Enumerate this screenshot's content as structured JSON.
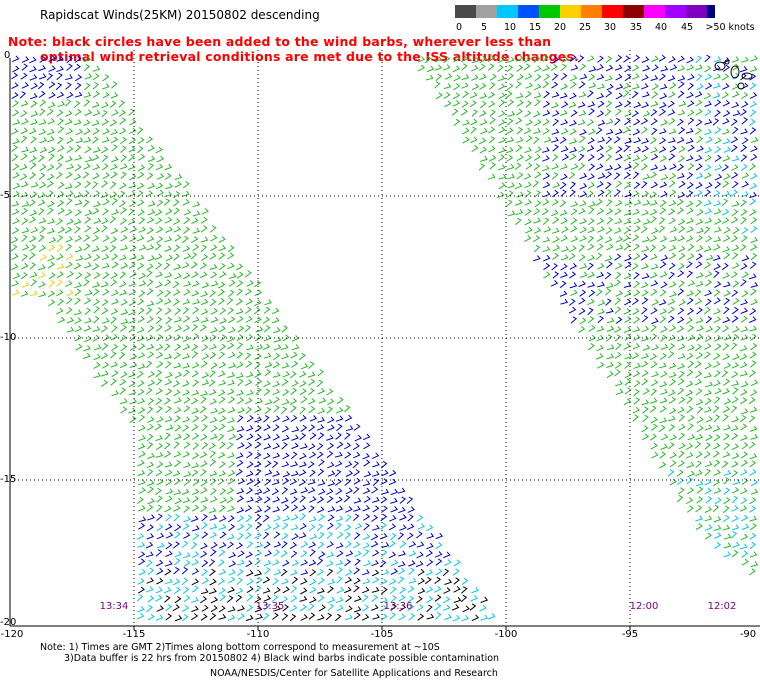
{
  "title": "Rapidscat Winds(25KM) 20150802 descending",
  "note": {
    "line1": "Note: black circles have been added to the wind barbs, wherever less than",
    "line2": "optimal wind retrieval conditions are met due to the ISS altitude changes."
  },
  "colorbar": {
    "labels": [
      "0",
      "5",
      "10",
      "15",
      "20",
      "25",
      "30",
      "35",
      "40",
      "45",
      ">50 knots"
    ],
    "colors": [
      "#4a4a4a",
      "#a0a0a0",
      "#00c8ff",
      "#0050ff",
      "#00c800",
      "#ffd000",
      "#ff8000",
      "#ff0000",
      "#8b0000",
      "#ff00ff",
      "#a000ff",
      "#8000c0",
      "#000080"
    ]
  },
  "map": {
    "lat_labels": [
      "0",
      "-5",
      "-10",
      "-15",
      "-20"
    ],
    "lon_labels": [
      "-120",
      "-115",
      "-110",
      "-105",
      "-100",
      "-95",
      "-90"
    ],
    "time_labels": [
      "13:34",
      "13:35",
      "13:36",
      "12:00",
      "12:02"
    ],
    "swath_colors": {
      "green": "#22bb22",
      "blue": "#0000cc",
      "cyan": "#00c8e8",
      "black": "#000000",
      "yellow": "#f0d000"
    }
  },
  "footer": {
    "line1": "Note: 1) Times are GMT 2)Times along bottom correspond to measurement at ~10S",
    "line2": "3)Data buffer is 22 hrs from 20150802 4) Black wind barbs indicate possible contamination",
    "credit": "NOAA/NESDIS/Center for Satellite Applications and Research"
  }
}
